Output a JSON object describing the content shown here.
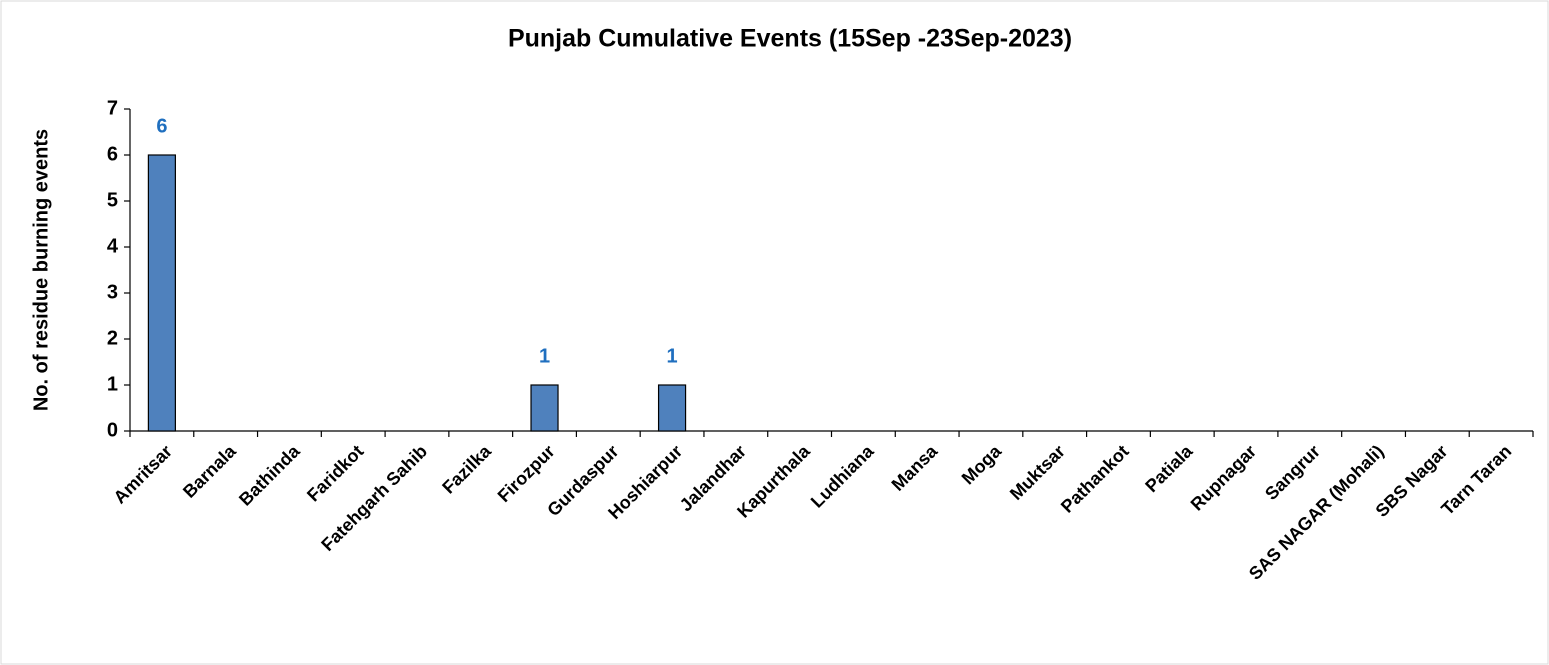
{
  "chart_data": {
    "type": "bar",
    "title": "Punjab Cumulative Events (15Sep -23Sep-2023)",
    "y_label": "No. of residue burning events",
    "categories": [
      "Amritsar",
      "Barnala",
      "Bathinda",
      "Faridkot",
      "Fatehgarh Sahib",
      "Fazilka",
      "Firozpur",
      "Gurdaspur",
      "Hoshiarpur",
      "Jalandhar",
      "Kapurthala",
      "Ludhiana",
      "Mansa",
      "Moga",
      "Muktsar",
      "Pathankot",
      "Patiala",
      "Rupnagar",
      "Sangrur",
      "SAS NAGAR (Mohali)",
      "SBS Nagar",
      "Tarn Taran"
    ],
    "values": [
      6,
      0,
      0,
      0,
      0,
      0,
      1,
      0,
      1,
      0,
      0,
      0,
      0,
      0,
      0,
      0,
      0,
      0,
      0,
      0,
      0,
      0
    ],
    "color": "#4f81bd",
    "label_color": "#1f6fbf",
    "ylim": [
      0,
      7
    ],
    "yticks": [
      0,
      1,
      2,
      3,
      4,
      5,
      6,
      7
    ],
    "grid": false,
    "data_labels": "nonzero"
  }
}
